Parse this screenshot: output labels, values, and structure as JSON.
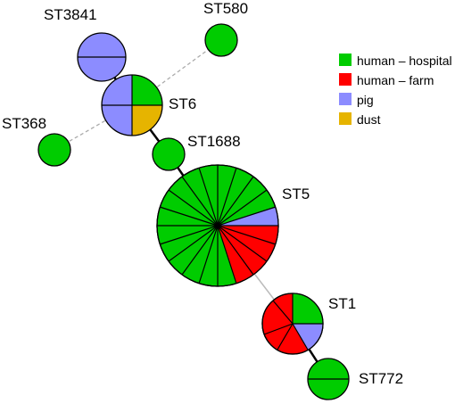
{
  "legend": {
    "items": [
      {
        "label": "human – hospital",
        "color": "#00cc00"
      },
      {
        "label": "human – farm",
        "color": "#ff0000"
      },
      {
        "label": "pig",
        "color": "#8c8cff"
      },
      {
        "label": "dust",
        "color": "#e6b400"
      }
    ]
  },
  "nodes": [
    {
      "id": "ST3841",
      "label": "ST3841"
    },
    {
      "id": "ST580",
      "label": "ST580"
    },
    {
      "id": "ST6",
      "label": "ST6"
    },
    {
      "id": "ST368",
      "label": "ST368"
    },
    {
      "id": "ST1688",
      "label": "ST1688"
    },
    {
      "id": "ST5",
      "label": "ST5"
    },
    {
      "id": "ST1",
      "label": "ST1"
    },
    {
      "id": "ST772",
      "label": "ST772"
    }
  ]
}
